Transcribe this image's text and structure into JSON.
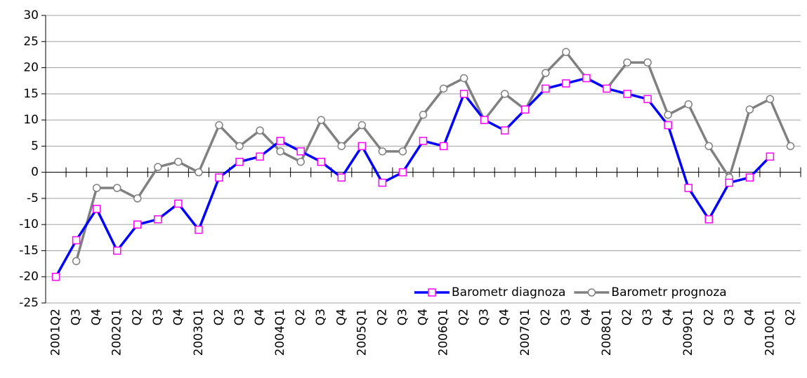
{
  "chart_data": {
    "type": "line",
    "categories": [
      "2001Q2",
      "Q3",
      "Q4",
      "2002Q1",
      "Q2",
      "Q3",
      "Q4",
      "2003Q1",
      "Q2",
      "Q3",
      "Q4",
      "2004Q1",
      "Q2",
      "Q3",
      "Q4",
      "2005Q1",
      "Q2",
      "Q3",
      "Q4",
      "2006Q1",
      "Q2",
      "Q3",
      "Q4",
      "2007Q1",
      "Q2",
      "Q3",
      "Q4",
      "2008Q1",
      "Q2",
      "Q3",
      "Q4",
      "2009Q1",
      "Q2",
      "Q3",
      "Q4",
      "2010Q1",
      "Q2"
    ],
    "series": [
      {
        "name": "Barometr diagnoza",
        "color": "#0000ff",
        "marker": "square",
        "marker_color": "#ff00ff",
        "values": [
          -20,
          -13,
          -7,
          -15,
          -10,
          -9,
          -6,
          -11,
          -1,
          2,
          3,
          6,
          4,
          2,
          -1,
          5,
          -2,
          0,
          6,
          5,
          15,
          10,
          8,
          12,
          16,
          17,
          18,
          16,
          15,
          14,
          9,
          -3,
          -9,
          -2,
          -1,
          3,
          null
        ]
      },
      {
        "name": "Barometr prognoza",
        "color": "#808080",
        "marker": "circle",
        "marker_color": "#808080",
        "values": [
          null,
          -17,
          -3,
          -3,
          -5,
          1,
          2,
          0,
          9,
          5,
          8,
          4,
          2,
          10,
          5,
          9,
          4,
          4,
          11,
          16,
          18,
          10,
          15,
          12,
          19,
          23,
          18,
          16,
          21,
          21,
          11,
          13,
          5,
          -1,
          12,
          14,
          5
        ]
      }
    ],
    "ylim": [
      -25,
      30
    ],
    "yticks": [
      -25,
      -20,
      -15,
      -10,
      -5,
      0,
      5,
      10,
      15,
      20,
      25,
      30
    ],
    "grid": true,
    "legend": "lower right"
  }
}
